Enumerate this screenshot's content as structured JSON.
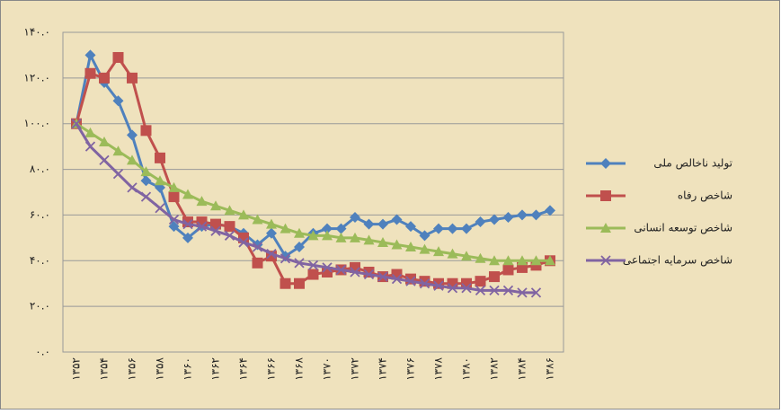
{
  "chart_data": {
    "type": "line",
    "categories": [
      "۱۳۵۲",
      null,
      "۱۳۵۴",
      null,
      "۱۳۵۶",
      null,
      "۱۳۵۸",
      null,
      "۱۳۶۰",
      null,
      "۱۳۶۲",
      null,
      "۱۳۶۴",
      null,
      "۱۳۶۶",
      null,
      "۱۳۶۸",
      null,
      "۱۳۷۰",
      null,
      "۱۳۷۲",
      null,
      "۱۳۷۴",
      null,
      "۱۳۷۶",
      null,
      "۱۳۷۸",
      null,
      "۱۳۸۰",
      null,
      "۱۳۸۲",
      null,
      "۱۳۸۴",
      null,
      "۱۳۸۶"
    ],
    "series": [
      {
        "name": "تولید ناخالص ملی",
        "color": "#4f81bd",
        "marker": "diamond",
        "values": [
          100,
          130,
          118,
          110,
          95,
          75,
          72,
          55,
          50,
          55,
          56,
          55,
          52,
          47,
          52,
          42,
          46,
          52,
          54,
          54,
          59,
          56,
          56,
          58,
          55,
          51,
          54,
          54,
          54,
          57,
          58,
          59,
          60,
          60,
          62
        ]
      },
      {
        "name": "شاخص رفاه",
        "color": "#c0504d",
        "marker": "square",
        "values": [
          100,
          122,
          120,
          129,
          120,
          97,
          85,
          68,
          57,
          57,
          56,
          55,
          50,
          39,
          42,
          30,
          30,
          34,
          35,
          36,
          37,
          35,
          33,
          34,
          32,
          31,
          30,
          30,
          30,
          31,
          33,
          36,
          37,
          38,
          40
        ]
      },
      {
        "name": "شاخص توسعه انسانی",
        "color": "#9bbb59",
        "marker": "triangle",
        "values": [
          100,
          96,
          92,
          88,
          84,
          79,
          75,
          72,
          69,
          66,
          64,
          62,
          60,
          58,
          56,
          54,
          52,
          51,
          51,
          50,
          50,
          49,
          48,
          47,
          46,
          45,
          44,
          43,
          42,
          41,
          40,
          40,
          40,
          40,
          40
        ]
      },
      {
        "name": "شاخص سرمایه اجتماعی",
        "color": "#8064a2",
        "marker": "x",
        "values": [
          100,
          90,
          84,
          78,
          72,
          68,
          63,
          58,
          56,
          55,
          53,
          51,
          48,
          46,
          43,
          41,
          39,
          38,
          37,
          36,
          35,
          34,
          33,
          32,
          31,
          30,
          29,
          28,
          28,
          27,
          27,
          27,
          26,
          26,
          null
        ]
      }
    ],
    "ylim": [
      0,
      140
    ],
    "yticks": [
      {
        "value": 0,
        "label": "۰.۰"
      },
      {
        "value": 20,
        "label": "۲۰.۰"
      },
      {
        "value": 40,
        "label": "۴۰.۰"
      },
      {
        "value": 60,
        "label": "۶۰.۰"
      },
      {
        "value": 80,
        "label": "۸۰.۰"
      },
      {
        "value": 100,
        "label": "۱۰۰.۰"
      },
      {
        "value": 120,
        "label": "۱۲۰.۰"
      },
      {
        "value": 140,
        "label": "۱۴۰.۰"
      }
    ],
    "grid": true
  }
}
